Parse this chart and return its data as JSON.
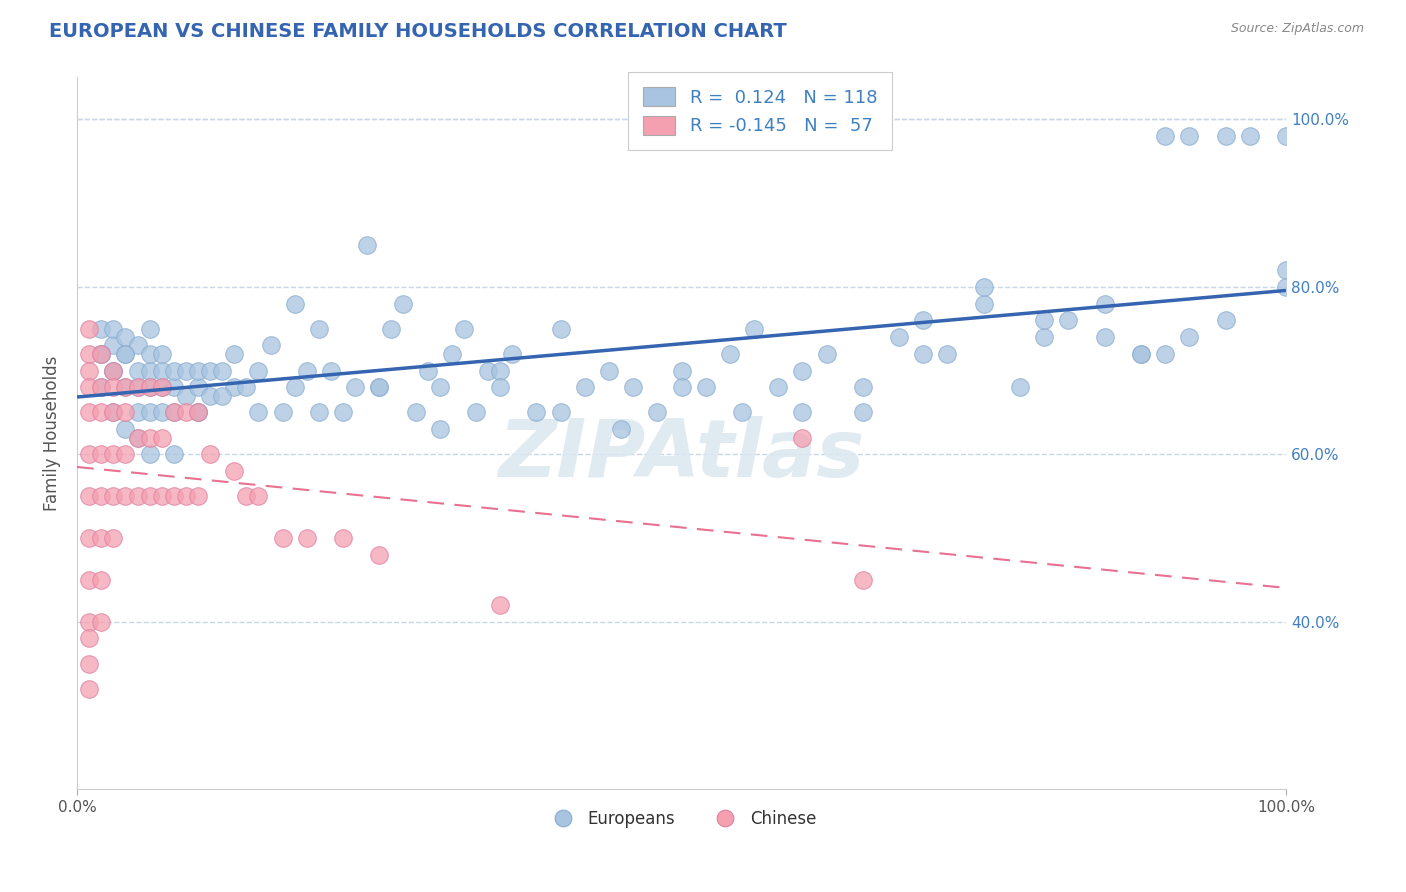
{
  "title": "EUROPEAN VS CHINESE FAMILY HOUSEHOLDS CORRELATION CHART",
  "source": "Source: ZipAtlas.com",
  "ylabel": "Family Households",
  "european_R": 0.124,
  "european_N": 118,
  "chinese_R": -0.145,
  "chinese_N": 57,
  "european_color": "#a8c4e0",
  "chinese_color": "#f4a0b0",
  "european_line_color": "#3565b0",
  "chinese_line_color": "#e87090",
  "chinese_line_dash": true,
  "watermark_text": "ZIPAtlas",
  "watermark_color": "#dce8f0",
  "legend_european_label": "Europeans",
  "legend_chinese_label": "Chinese",
  "background_color": "#ffffff",
  "grid_color": "#c8d8e8",
  "title_color": "#3565b0",
  "label_color": "#4080c0",
  "source_color": "#888888",
  "xlim": [
    0.0,
    1.0
  ],
  "ylim": [
    0.2,
    1.05
  ],
  "yticks": [
    0.4,
    0.6,
    0.8,
    1.0
  ],
  "ytick_labels": [
    "40.0%",
    "60.0%",
    "80.0%",
    "100.0%"
  ],
  "xticks": [
    0.0,
    1.0
  ],
  "xtick_labels": [
    "0.0%",
    "100.0%"
  ],
  "eu_x": [
    0.02,
    0.02,
    0.03,
    0.03,
    0.03,
    0.04,
    0.04,
    0.04,
    0.05,
    0.05,
    0.05,
    0.05,
    0.06,
    0.06,
    0.06,
    0.06,
    0.06,
    0.07,
    0.07,
    0.07,
    0.07,
    0.08,
    0.08,
    0.08,
    0.09,
    0.09,
    0.1,
    0.1,
    0.1,
    0.11,
    0.11,
    0.12,
    0.13,
    0.13,
    0.14,
    0.15,
    0.16,
    0.17,
    0.18,
    0.19,
    0.2,
    0.21,
    0.22,
    0.23,
    0.24,
    0.25,
    0.26,
    0.27,
    0.28,
    0.29,
    0.3,
    0.31,
    0.32,
    0.33,
    0.34,
    0.35,
    0.36,
    0.38,
    0.4,
    0.42,
    0.44,
    0.46,
    0.48,
    0.5,
    0.52,
    0.54,
    0.56,
    0.58,
    0.6,
    0.62,
    0.65,
    0.68,
    0.7,
    0.72,
    0.75,
    0.78,
    0.8,
    0.82,
    0.85,
    0.88,
    0.9,
    0.92,
    0.95,
    0.97,
    1.0,
    1.0,
    1.0,
    0.95,
    0.92,
    0.9,
    0.88,
    0.85,
    0.8,
    0.75,
    0.7,
    0.65,
    0.6,
    0.55,
    0.5,
    0.45,
    0.4,
    0.35,
    0.3,
    0.25,
    0.2,
    0.18,
    0.15,
    0.12,
    0.1,
    0.08,
    0.06,
    0.05,
    0.04,
    0.03,
    0.02,
    0.02,
    0.03,
    0.04
  ],
  "eu_y": [
    0.72,
    0.75,
    0.7,
    0.73,
    0.75,
    0.68,
    0.72,
    0.74,
    0.65,
    0.68,
    0.7,
    0.73,
    0.65,
    0.68,
    0.7,
    0.72,
    0.75,
    0.65,
    0.68,
    0.7,
    0.72,
    0.65,
    0.68,
    0.7,
    0.67,
    0.7,
    0.65,
    0.68,
    0.7,
    0.67,
    0.7,
    0.7,
    0.68,
    0.72,
    0.68,
    0.7,
    0.73,
    0.65,
    0.78,
    0.7,
    0.75,
    0.7,
    0.65,
    0.68,
    0.85,
    0.68,
    0.75,
    0.78,
    0.65,
    0.7,
    0.68,
    0.72,
    0.75,
    0.65,
    0.7,
    0.7,
    0.72,
    0.65,
    0.75,
    0.68,
    0.7,
    0.68,
    0.65,
    0.7,
    0.68,
    0.72,
    0.75,
    0.68,
    0.7,
    0.72,
    0.68,
    0.74,
    0.76,
    0.72,
    0.78,
    0.68,
    0.74,
    0.76,
    0.78,
    0.72,
    0.98,
    0.98,
    0.98,
    0.98,
    0.98,
    0.82,
    0.8,
    0.76,
    0.74,
    0.72,
    0.72,
    0.74,
    0.76,
    0.8,
    0.72,
    0.65,
    0.65,
    0.65,
    0.68,
    0.63,
    0.65,
    0.68,
    0.63,
    0.68,
    0.65,
    0.68,
    0.65,
    0.67,
    0.65,
    0.6,
    0.6,
    0.62,
    0.63,
    0.65,
    0.68,
    0.72,
    0.7,
    0.72
  ],
  "ch_x": [
    0.01,
    0.01,
    0.01,
    0.01,
    0.01,
    0.01,
    0.01,
    0.01,
    0.01,
    0.01,
    0.01,
    0.01,
    0.01,
    0.02,
    0.02,
    0.02,
    0.02,
    0.02,
    0.02,
    0.02,
    0.02,
    0.03,
    0.03,
    0.03,
    0.03,
    0.03,
    0.03,
    0.04,
    0.04,
    0.04,
    0.04,
    0.05,
    0.05,
    0.05,
    0.06,
    0.06,
    0.06,
    0.07,
    0.07,
    0.07,
    0.08,
    0.08,
    0.09,
    0.09,
    0.1,
    0.1,
    0.11,
    0.13,
    0.14,
    0.15,
    0.17,
    0.19,
    0.22,
    0.25,
    0.35,
    0.6,
    0.65
  ],
  "ch_y": [
    0.75,
    0.72,
    0.7,
    0.68,
    0.65,
    0.6,
    0.55,
    0.5,
    0.45,
    0.4,
    0.38,
    0.35,
    0.32,
    0.72,
    0.68,
    0.65,
    0.6,
    0.55,
    0.5,
    0.45,
    0.4,
    0.7,
    0.68,
    0.65,
    0.6,
    0.55,
    0.5,
    0.68,
    0.65,
    0.6,
    0.55,
    0.68,
    0.62,
    0.55,
    0.68,
    0.62,
    0.55,
    0.68,
    0.62,
    0.55,
    0.65,
    0.55,
    0.65,
    0.55,
    0.65,
    0.55,
    0.6,
    0.58,
    0.55,
    0.55,
    0.5,
    0.5,
    0.5,
    0.48,
    0.42,
    0.62,
    0.45
  ]
}
